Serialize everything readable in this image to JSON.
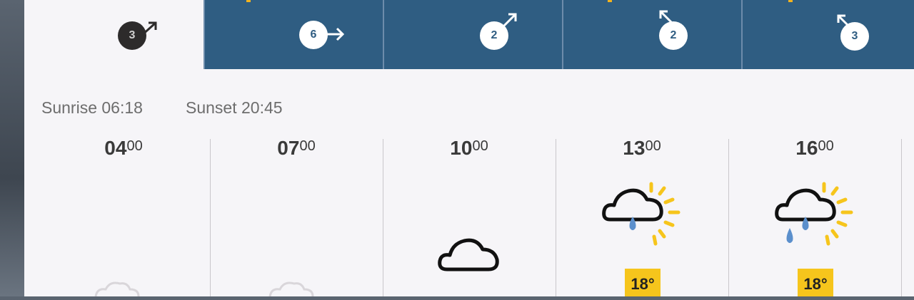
{
  "tabs": [
    {
      "wind_speed": "3",
      "active": true
    },
    {
      "wind_speed": "6",
      "active": false
    },
    {
      "wind_speed": "2",
      "active": false
    },
    {
      "wind_speed": "2",
      "active": false
    },
    {
      "wind_speed": "3",
      "active": false
    }
  ],
  "sun": {
    "sunrise": "Sunrise 06:18",
    "sunset": "Sunset 20:45"
  },
  "hours": [
    {
      "hour": "04",
      "min": "00",
      "icon": "cloud-faded-icon"
    },
    {
      "hour": "07",
      "min": "00",
      "icon": "cloud-faded-icon"
    },
    {
      "hour": "10",
      "min": "00",
      "icon": "cloud-icon"
    },
    {
      "hour": "13",
      "min": "00",
      "icon": "sun-cloud-rain-icon",
      "temp": "18°"
    },
    {
      "hour": "16",
      "min": "00",
      "icon": "sun-cloud-rain-icon",
      "temp": "18°"
    }
  ],
  "colors": {
    "tab_blue": "#2f5d82",
    "accent_yellow": "#f6c51c",
    "panel_bg": "#f6f5f8"
  }
}
